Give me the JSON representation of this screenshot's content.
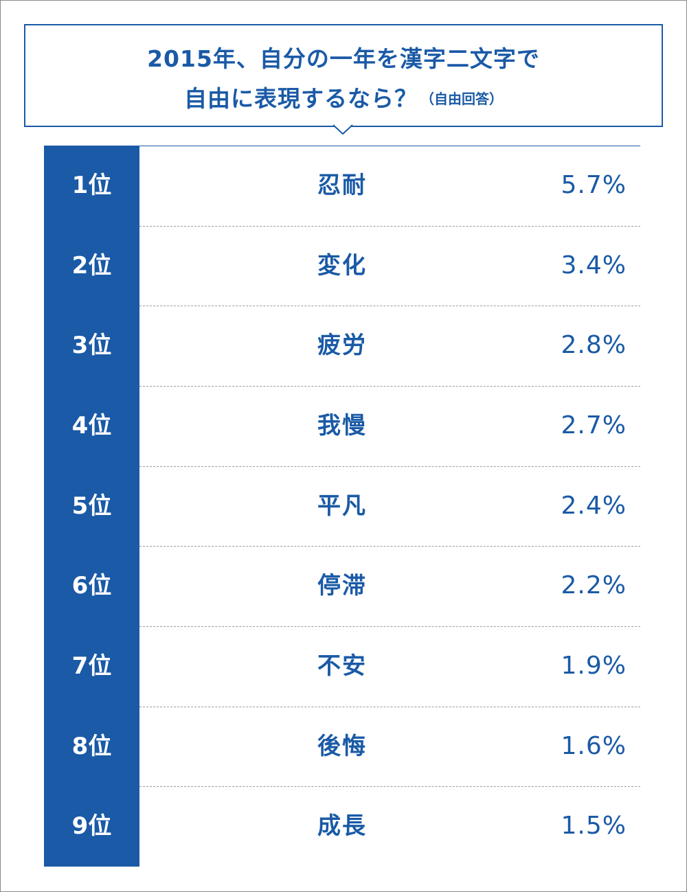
{
  "title": {
    "line1": "2015年、自分の一年を漢字二文字で",
    "line2": "自由に表現するなら？",
    "note": "（自由回答）"
  },
  "colors": {
    "accent": "#1a5aa6",
    "divider": "#9a9a9a"
  },
  "chart_data": {
    "type": "table",
    "title": "2015年、自分の一年を漢字二文字で自由に表現するなら？（自由回答）",
    "columns": [
      "rank",
      "word",
      "percent"
    ],
    "rows": [
      {
        "rank": "1位",
        "word": "忍耐",
        "percent": "5.7%",
        "value": 5.7
      },
      {
        "rank": "2位",
        "word": "変化",
        "percent": "3.4%",
        "value": 3.4
      },
      {
        "rank": "3位",
        "word": "疲労",
        "percent": "2.8%",
        "value": 2.8
      },
      {
        "rank": "4位",
        "word": "我慢",
        "percent": "2.7%",
        "value": 2.7
      },
      {
        "rank": "5位",
        "word": "平凡",
        "percent": "2.4%",
        "value": 2.4
      },
      {
        "rank": "6位",
        "word": "停滞",
        "percent": "2.2%",
        "value": 2.2
      },
      {
        "rank": "7位",
        "word": "不安",
        "percent": "1.9%",
        "value": 1.9
      },
      {
        "rank": "8位",
        "word": "後悔",
        "percent": "1.6%",
        "value": 1.6
      },
      {
        "rank": "9位",
        "word": "成長",
        "percent": "1.5%",
        "value": 1.5
      }
    ]
  }
}
